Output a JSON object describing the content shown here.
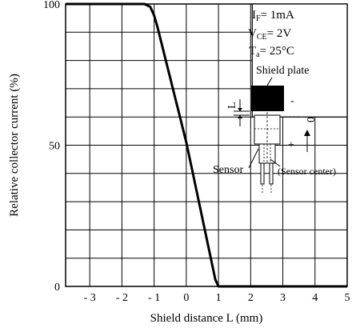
{
  "chart_data": {
    "type": "line",
    "title": "",
    "xlabel": "Shield distance L (mm)",
    "ylabel": "Relative collector current (%)",
    "xlim": [
      -3.75,
      5
    ],
    "ylim": [
      0,
      100
    ],
    "x_ticks": [
      -3,
      -2,
      -1,
      0,
      1,
      2,
      3,
      4,
      5
    ],
    "x_tick_labels": [
      "- 3",
      "- 2",
      "- 1",
      "0",
      "1",
      "2",
      "3",
      "4",
      "5"
    ],
    "y_ticks": [
      0,
      50,
      100
    ],
    "y_tick_labels": [
      "0",
      "50",
      "100"
    ],
    "grid": true,
    "series": [
      {
        "x": [
          -3.75,
          -1.3,
          -1.12,
          -1.0,
          -0.9,
          0.0,
          0.8,
          0.9,
          1.0,
          5.0
        ],
        "y": [
          100,
          100,
          99,
          96,
          92,
          51,
          8,
          2.5,
          0,
          0
        ]
      }
    ],
    "conditions": {
      "if_letter": "I",
      "if_sub": "F",
      "if_value": "= 1mA",
      "vce_letter": "V",
      "vce_sub": "CE",
      "vce_value": "= 2V",
      "ta_letter": "T",
      "ta_sub": "a",
      "ta_value": "= 25°C"
    },
    "inset": {
      "shield_plate_label": "Shield plate",
      "sensor_label": "Sensor",
      "sensor_center_label": "(Sensor center)",
      "l_label": "L",
      "minus_sign": "-",
      "zero_label": "0",
      "plus_sign": "+"
    }
  }
}
